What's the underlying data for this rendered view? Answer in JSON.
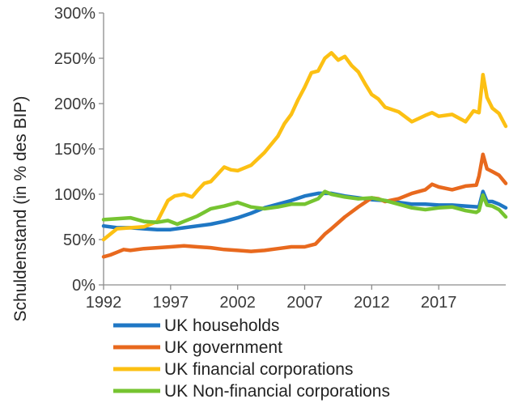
{
  "chart_data": {
    "type": "line",
    "title": "",
    "xlabel": "",
    "ylabel": "Schuldenstand (in % des BIP)",
    "xlim": [
      1992,
      2022
    ],
    "ylim": [
      0,
      300
    ],
    "x_ticks": [
      1992,
      1997,
      2002,
      2007,
      2012,
      2017
    ],
    "x_tick_labels": [
      "1992",
      "1997",
      "2002",
      "2007",
      "2012",
      "2017"
    ],
    "y_ticks": [
      0,
      50,
      100,
      150,
      200,
      250,
      300
    ],
    "y_tick_labels": [
      "0%",
      "50%",
      "100%",
      "150%",
      "200%",
      "250%",
      "300%"
    ],
    "legend_position": "bottom",
    "series": [
      {
        "name": "UK households",
        "color": "#1f77c4",
        "x": [
          1992,
          1993,
          1994,
          1995,
          1996,
          1997,
          1998,
          1999,
          2000,
          2001,
          2002,
          2003,
          2004,
          2005,
          2006,
          2007,
          2008,
          2009,
          2010,
          2011,
          2012,
          2013,
          2014,
          2015,
          2016,
          2017,
          2018,
          2019,
          2020,
          2020.3,
          2020.6,
          2021,
          2021.5,
          2022
        ],
        "y": [
          65,
          63,
          63,
          62,
          61,
          61,
          63,
          65,
          67,
          70,
          74,
          79,
          85,
          89,
          93,
          98,
          101,
          101,
          98,
          96,
          94,
          93,
          91,
          89,
          89,
          88,
          88,
          87,
          86,
          103,
          92,
          92,
          89,
          85
        ]
      },
      {
        "name": "UK government",
        "color": "#e8691e",
        "x": [
          1992,
          1992.5,
          1993,
          1993.5,
          1994,
          1995,
          1996,
          1997,
          1998,
          1999,
          2000,
          2001,
          2002,
          2003,
          2004,
          2005,
          2006,
          2007,
          2007.8,
          2008.5,
          2009,
          2010,
          2011,
          2012,
          2012.5,
          2013,
          2014,
          2015,
          2016,
          2016.5,
          2017,
          2018,
          2019,
          2019.8,
          2020,
          2020.3,
          2020.6,
          2021,
          2021.5,
          2022
        ],
        "y": [
          31,
          33,
          36,
          39,
          38,
          40,
          41,
          42,
          43,
          42,
          41,
          39,
          38,
          37,
          38,
          40,
          42,
          42,
          45,
          56,
          62,
          75,
          86,
          96,
          95,
          92,
          95,
          101,
          105,
          111,
          108,
          105,
          109,
          110,
          120,
          144,
          128,
          125,
          121,
          112
        ]
      },
      {
        "name": "UK financial corporations",
        "color": "#fcc013",
        "x": [
          1992,
          1992.5,
          1993,
          1994,
          1995,
          1996,
          1996.8,
          1997.3,
          1998,
          1998.6,
          1999,
          1999.5,
          2000,
          2000.5,
          2001,
          2001.5,
          2002,
          2003,
          2004,
          2005,
          2005.5,
          2006,
          2006.5,
          2007,
          2007.5,
          2008,
          2008.5,
          2009,
          2009.5,
          2010,
          2010.5,
          2011,
          2011.5,
          2012,
          2012.5,
          2013,
          2014,
          2015,
          2016,
          2016.5,
          2017,
          2018,
          2019,
          2019.6,
          2020,
          2020.3,
          2020.6,
          2021,
          2021.5,
          2022
        ],
        "y": [
          50,
          56,
          62,
          63,
          64,
          70,
          93,
          98,
          100,
          97,
          104,
          112,
          114,
          122,
          130,
          127,
          126,
          132,
          146,
          164,
          178,
          188,
          204,
          218,
          234,
          236,
          250,
          256,
          248,
          252,
          242,
          235,
          222,
          210,
          205,
          196,
          191,
          180,
          187,
          190,
          186,
          188,
          180,
          192,
          190,
          232,
          207,
          195,
          189,
          175
        ]
      },
      {
        "name": "UK Non-financial corporations",
        "color": "#76c431",
        "x": [
          1992,
          1993,
          1994,
          1995,
          1996,
          1996.8,
          1997.5,
          1998,
          1999,
          2000,
          2001,
          2002,
          2003,
          2004,
          2005,
          2006,
          2007,
          2008,
          2008.5,
          2009,
          2010,
          2011,
          2012,
          2013,
          2014,
          2015,
          2016,
          2017,
          2018,
          2019,
          2019.8,
          2020,
          2020.3,
          2020.6,
          2021,
          2021.5,
          2022
        ],
        "y": [
          72,
          73,
          74,
          70,
          69,
          71,
          67,
          70,
          76,
          84,
          87,
          91,
          86,
          84,
          86,
          89,
          89,
          95,
          103,
          100,
          97,
          95,
          96,
          93,
          89,
          85,
          83,
          85,
          86,
          82,
          80,
          82,
          99,
          88,
          87,
          83,
          75
        ]
      }
    ]
  }
}
